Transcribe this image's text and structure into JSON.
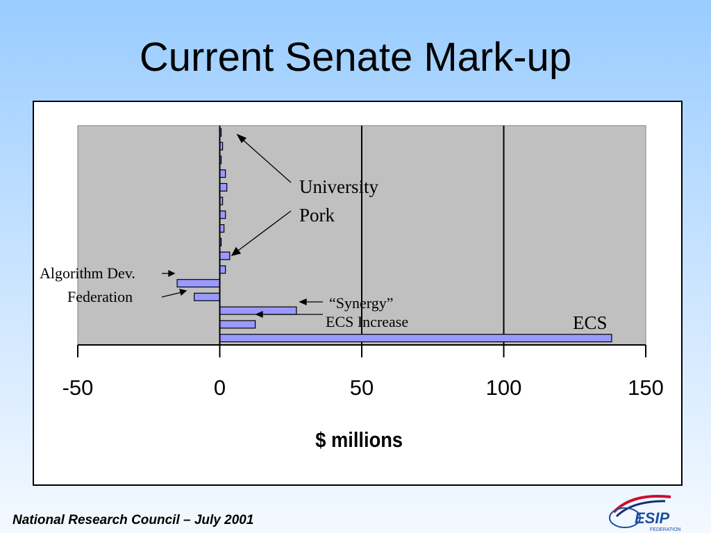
{
  "slide": {
    "title": "Current Senate Mark-up",
    "footer": "National Research Council – July 2001",
    "logo_text": "ESIP",
    "logo_subtext": "FEDERATION"
  },
  "colors": {
    "bar_fill": "#9999ff",
    "plot_bg": "#c0c0c0",
    "text": "#000000"
  },
  "chart_data": {
    "type": "bar",
    "orientation": "horizontal",
    "xlabel": "$ millions",
    "xlim": [
      -50,
      150
    ],
    "xticks": [
      -50,
      0,
      50,
      100,
      150
    ],
    "grid": "vertical major lines",
    "legend": "none",
    "values": [
      0.5,
      1,
      0.5,
      2,
      2.5,
      1,
      2,
      1.5,
      0.5,
      3.5,
      2,
      -15,
      -9,
      27,
      12.5,
      138
    ],
    "annotations": {
      "university_pork_line1": "University",
      "university_pork_line2": "Pork",
      "algorithm_dev": "Algorithm Dev.",
      "federation": "Federation",
      "synergy": "“Synergy”",
      "ecs_increase": "ECS Increase",
      "ecs": "ECS"
    }
  }
}
